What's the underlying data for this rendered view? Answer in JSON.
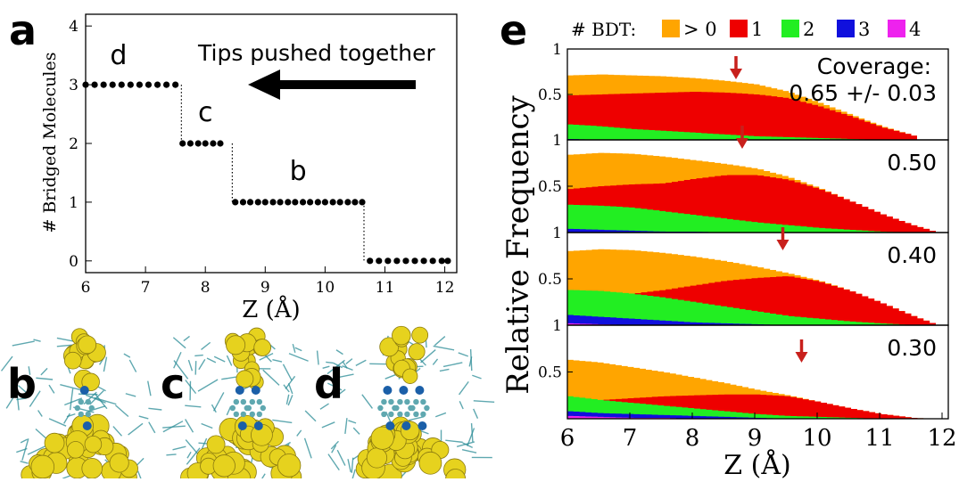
{
  "panels": {
    "a": "a",
    "b": "b",
    "c": "c",
    "d": "d",
    "e": "e"
  },
  "colors": {
    "orange": "#FFA500",
    "red": "#EE0000",
    "green": "#22EE22",
    "blue": "#1010DD",
    "magenta": "#EE22EE",
    "arrow": "#C8201C",
    "gold": "#E6D21E",
    "teal": "#2A8C96"
  },
  "panel_a": {
    "xlabel": "Z (Å)",
    "ylabel": "# Bridged Molecules",
    "annotation": "Tips pushed together",
    "step_labels": [
      {
        "text": "d",
        "x": 6.55,
        "y": 3.35
      },
      {
        "text": "c",
        "x": 8.0,
        "y": 2.38
      },
      {
        "text": "b",
        "x": 9.55,
        "y": 1.38
      }
    ]
  },
  "panel_e": {
    "ylabel": "Relative Frequency",
    "xlabel": "Z (Å)",
    "legend_title": "# BDT:",
    "legend": [
      {
        "label": "> 0",
        "color": "#FFA500"
      },
      {
        "label": "1",
        "color": "#EE0000"
      },
      {
        "label": "2",
        "color": "#22EE22"
      },
      {
        "label": "3",
        "color": "#1010DD"
      },
      {
        "label": "4",
        "color": "#EE22EE"
      }
    ],
    "coverage_title": "Coverage:",
    "xticks": [
      "6",
      "7",
      "8",
      "9",
      "10",
      "11",
      "12"
    ]
  },
  "chart_data": [
    {
      "type": "scatter",
      "panel": "a",
      "xlabel": "Z (Å)",
      "ylabel": "# Bridged Molecules",
      "xlim": [
        6,
        12.2
      ],
      "ylim": [
        -0.2,
        4.2
      ],
      "xticks": [
        6,
        7,
        8,
        9,
        10,
        11,
        12
      ],
      "yticks": [
        0,
        1,
        2,
        3,
        4
      ],
      "series": [
        {
          "x": [
            6.0,
            6.15,
            6.3,
            6.45,
            6.6,
            6.75,
            6.9,
            7.05,
            7.2,
            7.35,
            7.5,
            7.62,
            7.75,
            7.88,
            8.0,
            8.13,
            8.25,
            8.5,
            8.63,
            8.75,
            8.88,
            9.0,
            9.13,
            9.25,
            9.38,
            9.5,
            9.63,
            9.75,
            9.88,
            10.0,
            10.13,
            10.25,
            10.38,
            10.5,
            10.62,
            10.75,
            10.9,
            11.05,
            11.2,
            11.35,
            11.5,
            11.65,
            11.8,
            11.95,
            12.05
          ],
          "y": [
            3,
            3,
            3,
            3,
            3,
            3,
            3,
            3,
            3,
            3,
            3,
            2,
            2,
            2,
            2,
            2,
            2,
            1,
            1,
            1,
            1,
            1,
            1,
            1,
            1,
            1,
            1,
            1,
            1,
            1,
            1,
            1,
            1,
            1,
            1,
            0,
            0,
            0,
            0,
            0,
            0,
            0,
            0,
            0,
            0
          ]
        }
      ],
      "transitions": [
        7.6,
        8.45,
        10.65
      ]
    },
    {
      "type": "area",
      "panel": "e",
      "coverage": "0.65 +/- 0.03",
      "xlabel": "Z (Å)",
      "ylabel": "Relative Frequency",
      "xlim": [
        6,
        12.1
      ],
      "ylim": [
        0,
        1
      ],
      "yticks": [
        "0.5",
        "1"
      ],
      "arrow_x": 8.7,
      "x": [
        6.0,
        6.5,
        7.0,
        7.5,
        8.0,
        8.5,
        9.0,
        9.5,
        10.0,
        10.5,
        11.0,
        11.5,
        11.6
      ],
      "series": [
        {
          "name": "> 0",
          "values": [
            0.71,
            0.72,
            0.71,
            0.7,
            0.68,
            0.65,
            0.61,
            0.53,
            0.41,
            0.28,
            0.15,
            0.05,
            0.0
          ]
        },
        {
          "name": "1",
          "values": [
            0.49,
            0.5,
            0.51,
            0.52,
            0.53,
            0.52,
            0.5,
            0.46,
            0.37,
            0.26,
            0.14,
            0.05,
            0.0
          ]
        },
        {
          "name": "2",
          "values": [
            0.17,
            0.15,
            0.12,
            0.1,
            0.08,
            0.06,
            0.04,
            0.03,
            0.02,
            0.01,
            0.0,
            0.0,
            0.0
          ]
        },
        {
          "name": "3",
          "values": [
            0.01,
            0.0,
            0.0,
            0.0,
            0.0,
            0.0,
            0.0,
            0.0,
            0.0,
            0.0,
            0.0,
            0.0,
            0.0
          ]
        },
        {
          "name": "4",
          "values": [
            0,
            0,
            0,
            0,
            0,
            0,
            0,
            0,
            0,
            0,
            0,
            0,
            0
          ]
        }
      ]
    },
    {
      "type": "area",
      "panel": "e",
      "coverage": "0.50",
      "xlabel": "Z (Å)",
      "ylabel": "Relative Frequency",
      "xlim": [
        6,
        12.1
      ],
      "ylim": [
        0,
        1
      ],
      "yticks": [
        "0.5",
        "1"
      ],
      "arrow_x": 8.8,
      "x": [
        6.0,
        6.5,
        7.0,
        7.5,
        8.0,
        8.5,
        9.0,
        9.5,
        10.0,
        10.5,
        11.0,
        11.5,
        11.9
      ],
      "series": [
        {
          "name": "> 0",
          "values": [
            0.84,
            0.86,
            0.85,
            0.82,
            0.78,
            0.74,
            0.69,
            0.6,
            0.48,
            0.34,
            0.2,
            0.08,
            0.0
          ]
        },
        {
          "name": "1",
          "values": [
            0.47,
            0.5,
            0.52,
            0.53,
            0.58,
            0.62,
            0.62,
            0.57,
            0.47,
            0.34,
            0.2,
            0.08,
            0.0
          ]
        },
        {
          "name": "2",
          "values": [
            0.3,
            0.29,
            0.27,
            0.23,
            0.19,
            0.15,
            0.11,
            0.08,
            0.05,
            0.03,
            0.01,
            0.0,
            0.0
          ]
        },
        {
          "name": "3",
          "values": [
            0.04,
            0.03,
            0.02,
            0.01,
            0.01,
            0.0,
            0.0,
            0.0,
            0.0,
            0.0,
            0.0,
            0.0,
            0.0
          ]
        },
        {
          "name": "4",
          "values": [
            0,
            0,
            0,
            0,
            0,
            0,
            0,
            0,
            0,
            0,
            0,
            0,
            0
          ]
        }
      ]
    },
    {
      "type": "area",
      "panel": "e",
      "coverage": "0.40",
      "xlabel": "Z (Å)",
      "ylabel": "Relative Frequency",
      "xlim": [
        6,
        12.1
      ],
      "ylim": [
        0,
        1
      ],
      "yticks": [
        "0.5",
        "1"
      ],
      "arrow_x": 9.45,
      "x": [
        6.0,
        6.5,
        7.0,
        7.5,
        8.0,
        8.5,
        9.0,
        9.5,
        10.0,
        10.5,
        11.0,
        11.5,
        11.9
      ],
      "series": [
        {
          "name": "> 0",
          "values": [
            0.8,
            0.82,
            0.81,
            0.78,
            0.74,
            0.69,
            0.63,
            0.56,
            0.48,
            0.37,
            0.24,
            0.1,
            0.0
          ]
        },
        {
          "name": "1",
          "values": [
            0.27,
            0.3,
            0.34,
            0.38,
            0.43,
            0.48,
            0.51,
            0.53,
            0.47,
            0.37,
            0.24,
            0.1,
            0.0
          ]
        },
        {
          "name": "2",
          "values": [
            0.38,
            0.37,
            0.34,
            0.3,
            0.25,
            0.2,
            0.15,
            0.1,
            0.07,
            0.04,
            0.02,
            0.0,
            0.0
          ]
        },
        {
          "name": "3",
          "values": [
            0.11,
            0.09,
            0.07,
            0.05,
            0.03,
            0.02,
            0.01,
            0.0,
            0.0,
            0.0,
            0.0,
            0.0,
            0.0
          ]
        },
        {
          "name": "4",
          "values": [
            0.02,
            0.01,
            0.0,
            0.0,
            0.0,
            0.0,
            0.0,
            0.0,
            0.0,
            0.0,
            0.0,
            0.0,
            0.0
          ]
        }
      ]
    },
    {
      "type": "area",
      "panel": "e",
      "coverage": "0.30",
      "xlabel": "Z (Å)",
      "ylabel": "Relative Frequency",
      "xlim": [
        6,
        12.1
      ],
      "ylim": [
        0,
        1
      ],
      "yticks": [
        "0.5",
        "1"
      ],
      "arrow_x": 9.75,
      "x": [
        6.0,
        6.5,
        7.0,
        7.5,
        8.0,
        8.5,
        9.0,
        9.5,
        10.0,
        10.5,
        11.0,
        11.5,
        11.8
      ],
      "series": [
        {
          "name": "> 0",
          "values": [
            0.63,
            0.6,
            0.55,
            0.5,
            0.44,
            0.38,
            0.31,
            0.25,
            0.18,
            0.11,
            0.05,
            0.01,
            0.0
          ]
        },
        {
          "name": "1",
          "values": [
            0.18,
            0.2,
            0.22,
            0.24,
            0.25,
            0.26,
            0.26,
            0.24,
            0.18,
            0.11,
            0.05,
            0.01,
            0.0
          ]
        },
        {
          "name": "2",
          "values": [
            0.24,
            0.2,
            0.17,
            0.14,
            0.11,
            0.08,
            0.05,
            0.03,
            0.02,
            0.01,
            0.0,
            0.0,
            0.0
          ]
        },
        {
          "name": "3",
          "values": [
            0.08,
            0.06,
            0.05,
            0.04,
            0.03,
            0.02,
            0.01,
            0.0,
            0.0,
            0.0,
            0.0,
            0.0,
            0.0
          ]
        },
        {
          "name": "4",
          "values": [
            0.03,
            0.02,
            0.01,
            0.01,
            0.0,
            0.0,
            0.0,
            0.0,
            0.0,
            0.0,
            0.0,
            0.0,
            0.0
          ]
        }
      ]
    }
  ]
}
